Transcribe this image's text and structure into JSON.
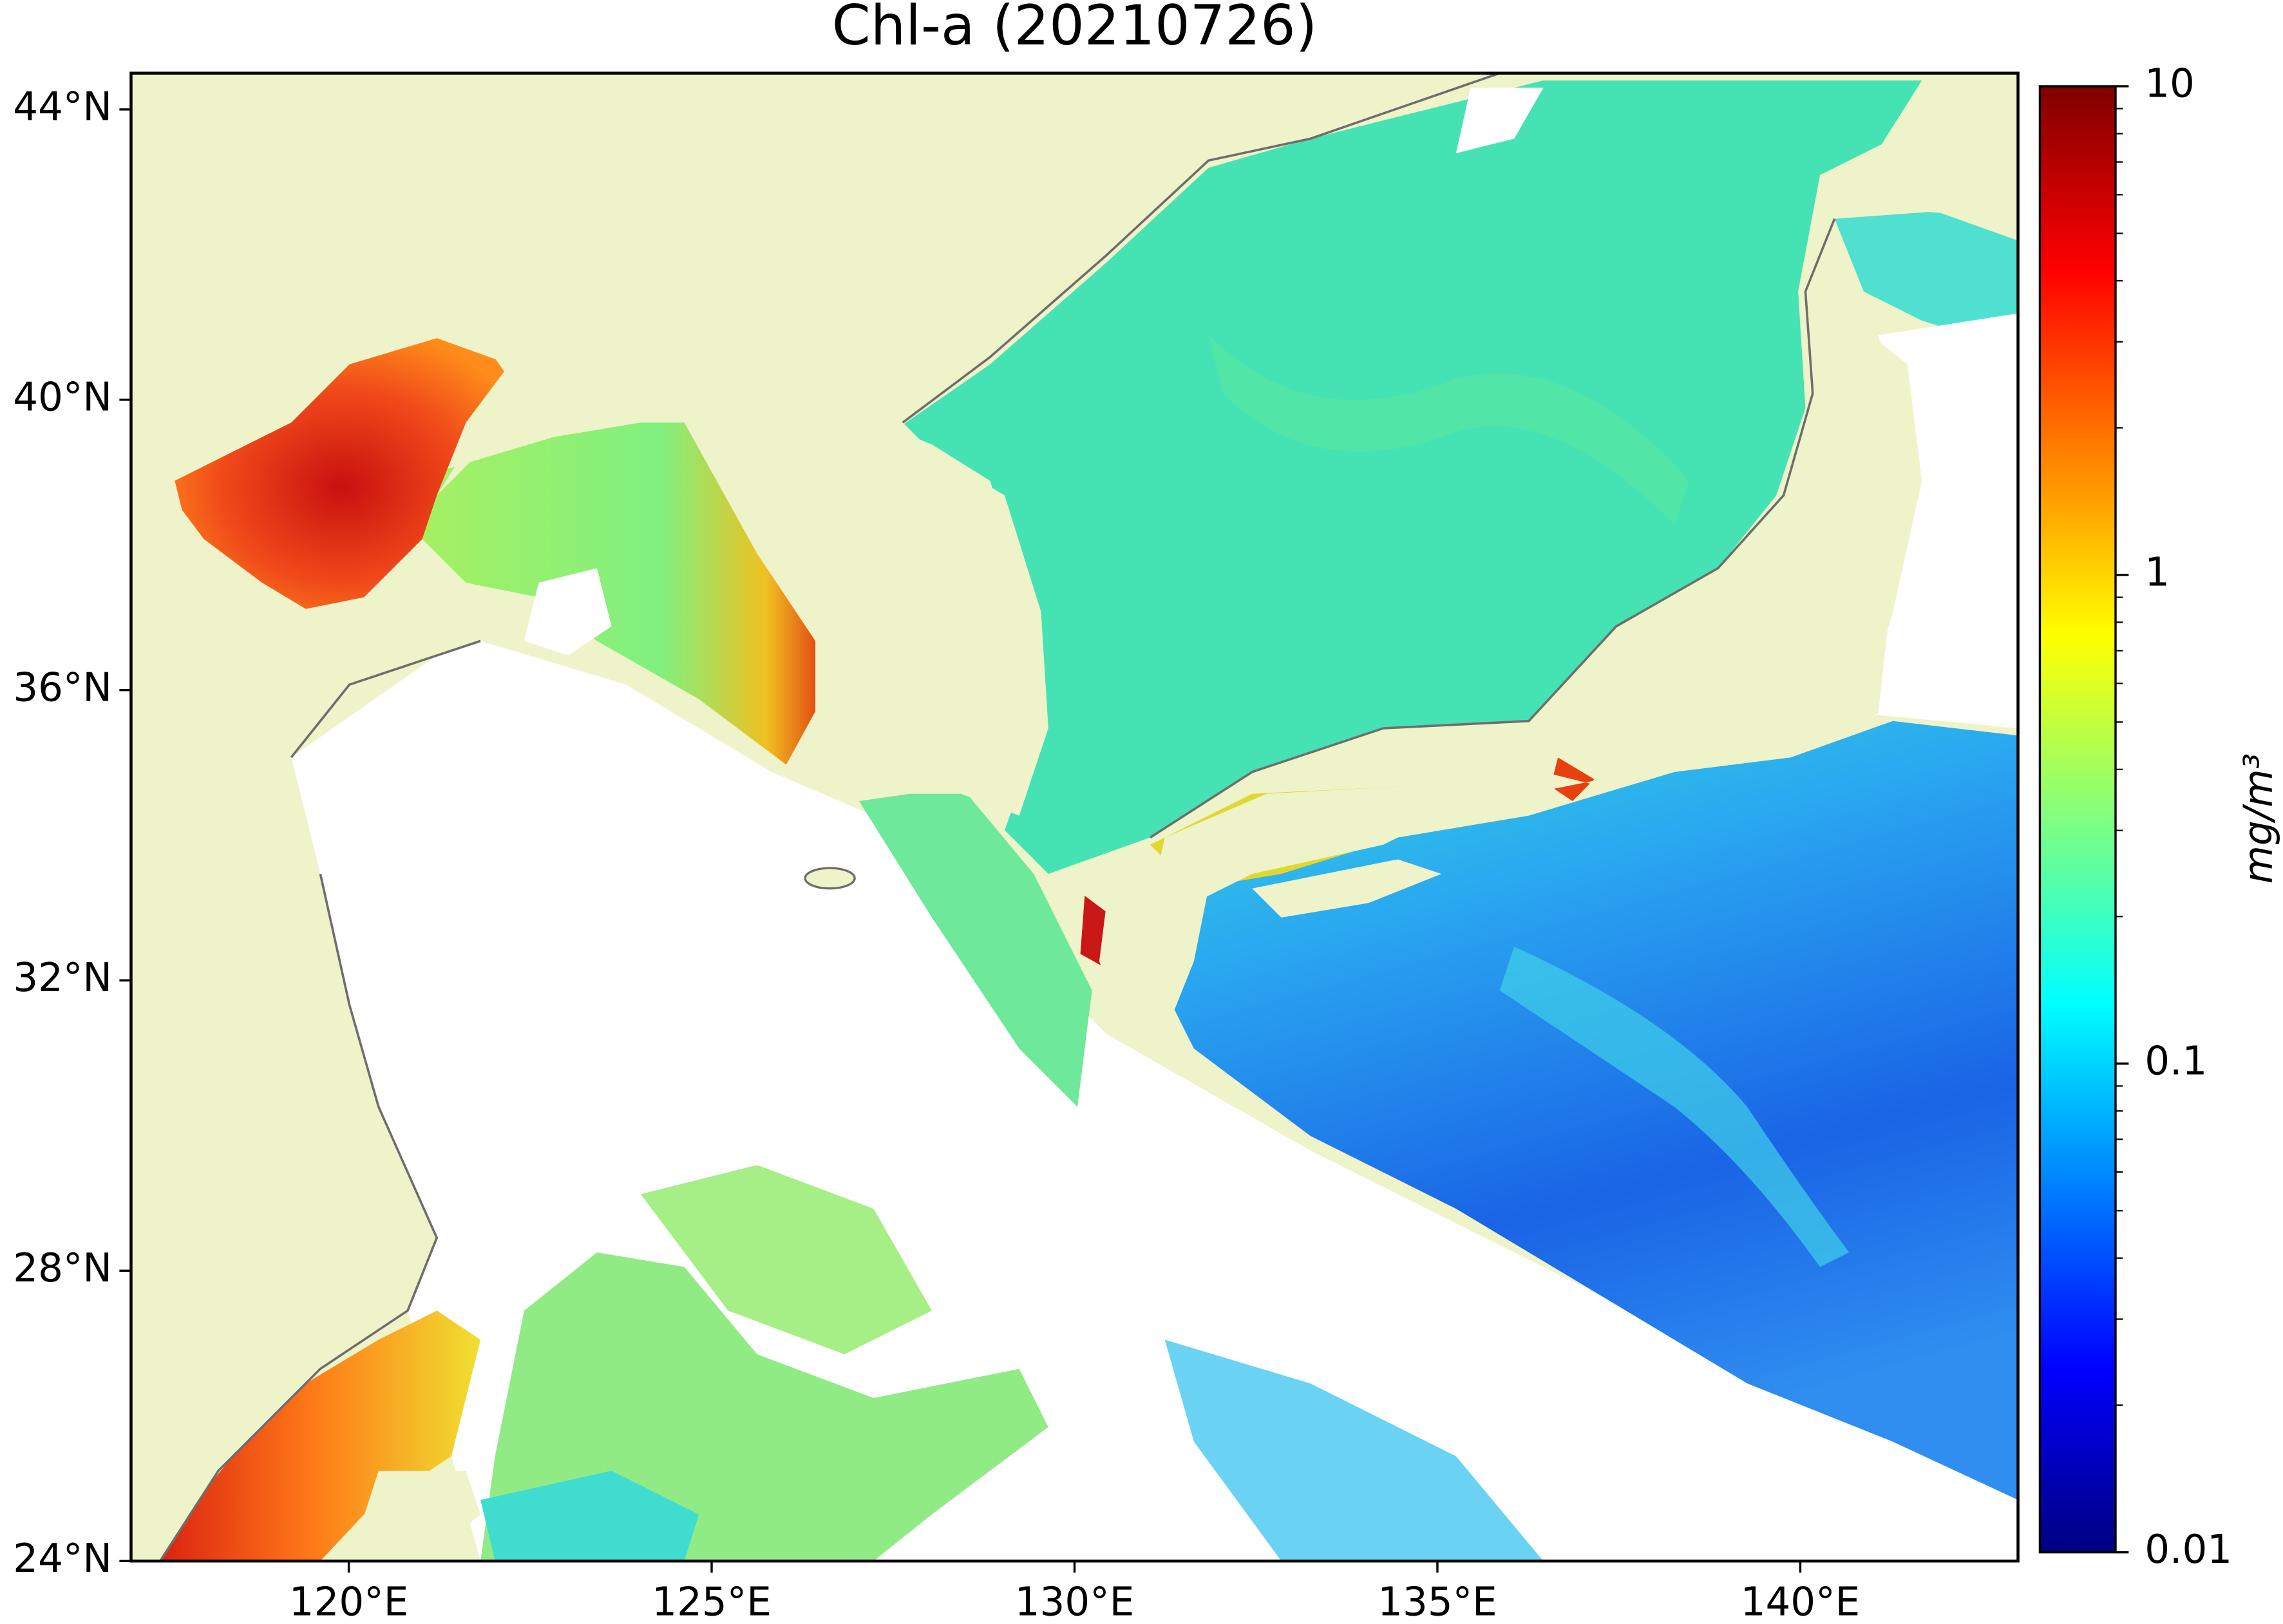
{
  "chart_data": {
    "type": "map",
    "title": "Chl-a (20210726)",
    "xlim": [
      117,
      143
    ],
    "ylim": [
      24,
      44.5
    ],
    "xticks": [
      {
        "value": 120,
        "label": "120°E"
      },
      {
        "value": 125,
        "label": "125°E"
      },
      {
        "value": 130,
        "label": "130°E"
      },
      {
        "value": 135,
        "label": "135°E"
      },
      {
        "value": 140,
        "label": "140°E"
      }
    ],
    "yticks": [
      {
        "value": 24,
        "label": "24°N"
      },
      {
        "value": 28,
        "label": "28°N"
      },
      {
        "value": 32,
        "label": "32°N"
      },
      {
        "value": 36,
        "label": "36°N"
      },
      {
        "value": 40,
        "label": "40°N"
      },
      {
        "value": 44,
        "label": "44°N"
      }
    ],
    "colorbar": {
      "label": "mg/m³",
      "colormap": "jet",
      "log_scale": true,
      "clim": [
        0.01,
        10
      ],
      "ticks": [
        0.01,
        0.1,
        1,
        10
      ]
    }
  }
}
